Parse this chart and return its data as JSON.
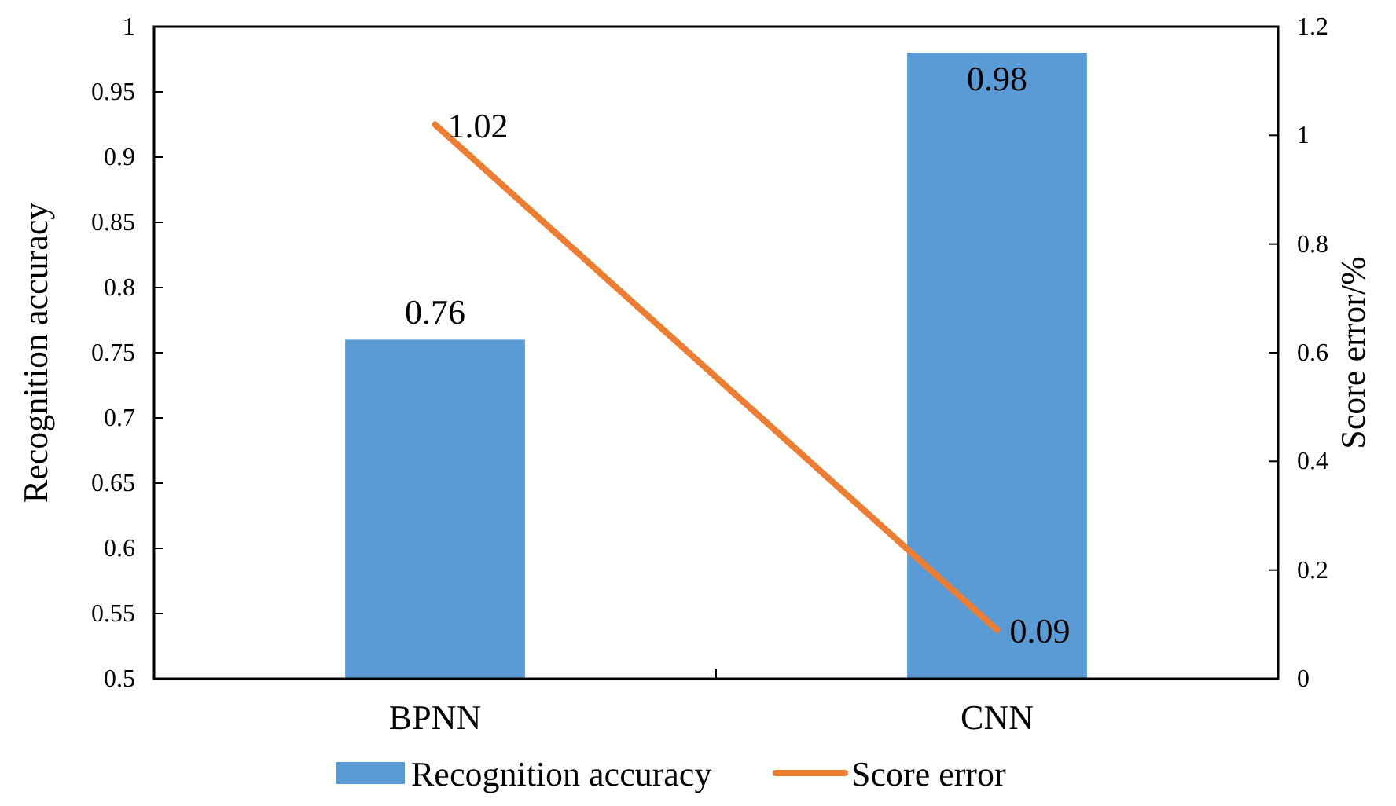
{
  "chart_data": {
    "type": "bar",
    "categories": [
      "BPNN",
      "CNN"
    ],
    "ylabel": "Recognition accuracy",
    "y2label": "Score error/%",
    "series": [
      {
        "name": "Recognition accuracy",
        "color": "#5b9bd5",
        "values": [
          0.76,
          0.98
        ]
      },
      {
        "name": "Score error",
        "type": "line",
        "axis": "y2",
        "color": "#ed7d31",
        "values": [
          1.02,
          0.09
        ]
      }
    ],
    "ylim": [
      0.5,
      1
    ],
    "yticks": [
      0.5,
      0.55,
      0.6,
      0.65,
      0.7,
      0.75,
      0.8,
      0.85,
      0.9,
      0.95,
      1
    ],
    "y2lim": [
      0,
      1.2
    ],
    "y2ticks": [
      0,
      0.2,
      0.4,
      0.6,
      0.8,
      1,
      1.2
    ],
    "data_labels": true,
    "legend": "bottom",
    "grid": false,
    "marker": "none",
    "line_style": "solid"
  }
}
